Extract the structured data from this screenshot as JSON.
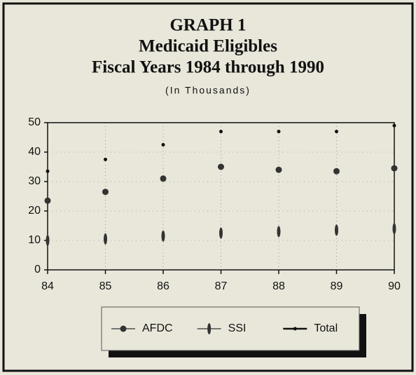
{
  "chart_data": {
    "type": "line",
    "title": [
      "GRAPH 1",
      "Medicaid Eligibles",
      "Fiscal Years 1984 through 1990"
    ],
    "subtitle": "(In Thousands)",
    "categories": [
      "84",
      "85",
      "86",
      "87",
      "88",
      "89",
      "90"
    ],
    "series": [
      {
        "name": "AFDC",
        "color": "#333333",
        "marker": "circle",
        "values": [
          23.5,
          26.5,
          31,
          35,
          34,
          33.5,
          34.5
        ]
      },
      {
        "name": "SSI",
        "color": "#333333",
        "marker": "tick",
        "values": [
          10,
          10.5,
          11.5,
          12.5,
          13,
          13.5,
          14
        ]
      },
      {
        "name": "Total",
        "color": "#111111",
        "marker": "dot",
        "values": [
          33.5,
          37.5,
          42.5,
          47,
          47,
          47,
          49
        ]
      }
    ],
    "ylim": [
      0,
      50
    ],
    "yticks": [
      0,
      10,
      20,
      30,
      40,
      50
    ],
    "grid": true,
    "legend": "bottom"
  }
}
